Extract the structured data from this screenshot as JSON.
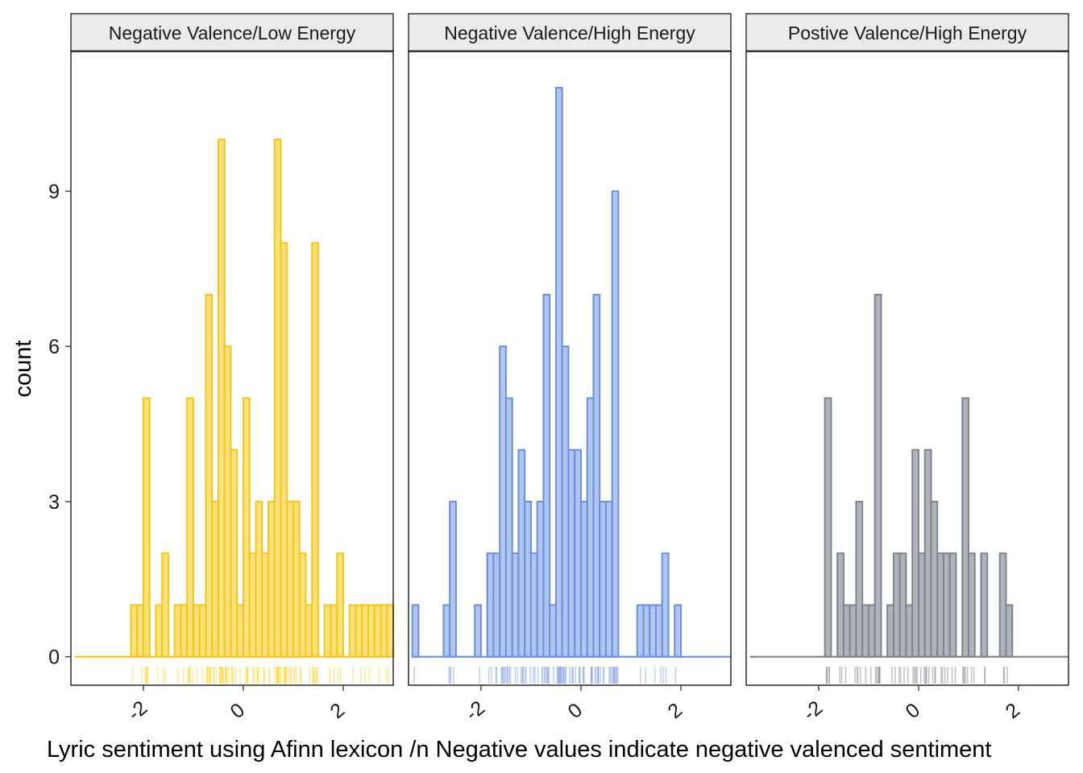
{
  "chart_data": {
    "type": "histogram",
    "xlabel": "Lyric sentiment using Afinn lexicon /n Negative values indicate negative valenced sentiment",
    "ylabel": "count",
    "xlim": [
      -3.45,
      3.0
    ],
    "ylim": [
      -0.55,
      11.7
    ],
    "x_ticks": [
      {
        "value": -2,
        "label": "-2"
      },
      {
        "value": 0,
        "label": "0"
      },
      {
        "value": 2,
        "label": "2"
      }
    ],
    "y_ticks": [
      {
        "value": 0,
        "label": "0"
      },
      {
        "value": 3,
        "label": "3"
      },
      {
        "value": 6,
        "label": "6"
      },
      {
        "value": 9,
        "label": "9"
      }
    ],
    "bin_width": 0.125,
    "bin_start": -3.375,
    "grid": false,
    "panels": [
      {
        "name": "Negative Valence/Low Energy",
        "fill_color": "#FFDF6E",
        "stroke_color": "#F5C518",
        "rug_color": "#FFD84A",
        "counts": [
          0,
          0,
          0,
          0,
          0,
          0,
          0,
          0,
          0,
          1,
          1,
          5,
          0,
          1,
          2,
          0,
          1,
          1,
          5,
          1,
          1,
          7,
          3,
          10,
          6,
          4,
          1,
          5,
          2,
          3,
          2,
          3,
          10,
          8,
          3,
          3,
          2,
          1,
          8,
          0,
          1,
          1,
          2,
          0,
          1,
          1,
          1,
          1,
          1,
          1,
          1
        ]
      },
      {
        "name": "Negative Valence/High Energy",
        "fill_color": "#A9BFF0",
        "stroke_color": "#6A8FDB",
        "rug_color": "#8FAAE6",
        "counts": [
          1,
          0,
          0,
          0,
          0,
          1,
          3,
          0,
          0,
          0,
          1,
          0,
          2,
          2,
          6,
          5,
          2,
          4,
          3,
          2,
          3,
          7,
          1,
          11,
          6,
          4,
          4,
          3,
          5,
          7,
          3,
          3,
          9,
          0,
          0,
          0,
          1,
          1,
          1,
          1,
          2,
          0,
          1,
          0,
          0,
          0,
          0,
          0,
          0,
          0,
          0
        ]
      },
      {
        "name": "Postive Valence/High Energy",
        "fill_color": "#A6ABB3",
        "stroke_color": "#7E848D",
        "rug_color": "#8E939B",
        "counts": [
          0,
          0,
          0,
          0,
          0,
          0,
          0,
          0,
          0,
          0,
          0,
          0,
          5,
          0,
          2,
          1,
          1,
          3,
          1,
          1,
          7,
          0,
          1,
          2,
          2,
          1,
          4,
          2,
          4,
          3,
          2,
          2,
          2,
          0,
          5,
          2,
          0,
          2,
          0,
          0,
          2,
          1,
          0,
          0,
          0,
          0,
          0,
          0,
          0,
          0,
          0
        ]
      }
    ]
  }
}
